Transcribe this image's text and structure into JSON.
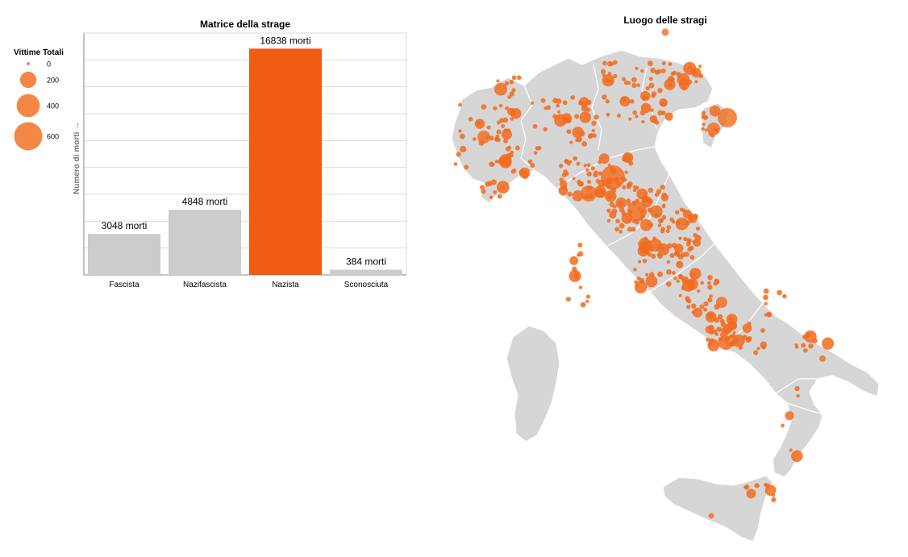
{
  "colors": {
    "accent": "#f05a14",
    "bubble": "#f26b1d",
    "bar_gray": "#cccccc",
    "map_fill": "#d6d6d6",
    "grid": "#d9d9d9"
  },
  "legend": {
    "title": "Vittime Totali",
    "entries": [
      {
        "label": "0",
        "value": 0
      },
      {
        "label": "200",
        "value": 200
      },
      {
        "label": "400",
        "value": 400
      },
      {
        "label": "600",
        "value": 600
      }
    ]
  },
  "chart_data": [
    {
      "type": "bar",
      "title": "Matrice della strage",
      "xlabel": "",
      "ylabel": "Numero di morti →",
      "categories": [
        "Fascista",
        "Nazifascista",
        "Nazista",
        "Sconosciuta"
      ],
      "values": [
        3048,
        4848,
        16838,
        384
      ],
      "data_labels": [
        "3048 morti",
        "4848 morti",
        "16838 morti",
        "384 morti"
      ],
      "highlight": "Nazista",
      "ylim": [
        0,
        18000
      ],
      "grid": true
    },
    {
      "type": "scatter",
      "title": "Luogo delle stragi",
      "grid": false,
      "size_encoding": "Vittime Totali"
    }
  ]
}
